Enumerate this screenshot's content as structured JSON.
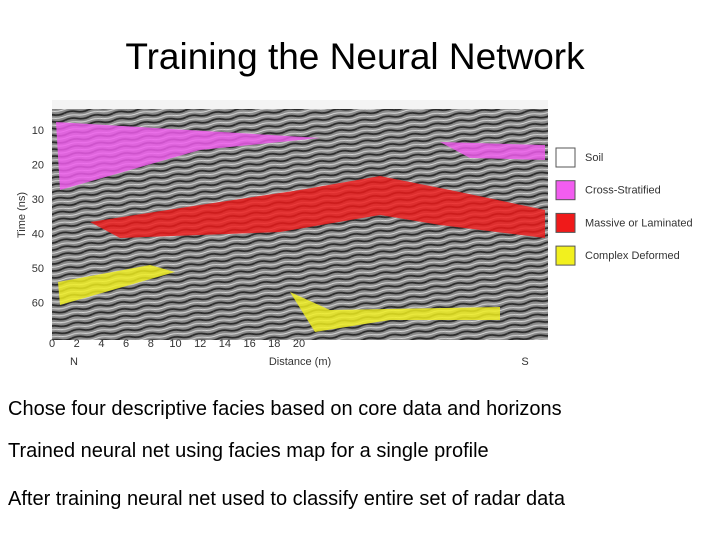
{
  "title": "Training the Neural Network",
  "figure": {
    "y_label": "Time (ns)",
    "x_label": "Distance (m)",
    "y_ticks": [
      "10",
      "20",
      "30",
      "40",
      "50",
      "60"
    ],
    "x_ticks": [
      "0",
      "2",
      "4",
      "6",
      "8",
      "10",
      "12",
      "14",
      "16",
      "18",
      "20"
    ],
    "x_ends": [
      "N",
      "S"
    ],
    "legend": [
      {
        "label": "Soil",
        "color": "#ffffff"
      },
      {
        "label": "Cross-Stratified",
        "color": "#f25df0"
      },
      {
        "label": "Massive or Laminated",
        "color": "#f01a1a"
      },
      {
        "label": "Complex Deformed",
        "color": "#f2f01e"
      }
    ]
  },
  "bullets": [
    "Chose four descriptive facies based on core data and horizons",
    "Trained neural net using facies map for a single profile",
    "After training neural net used to classify entire set of radar data"
  ]
}
